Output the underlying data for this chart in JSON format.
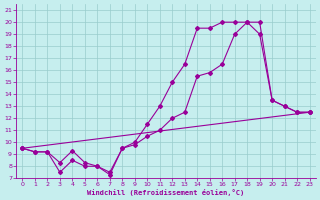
{
  "xlabel": "Windchill (Refroidissement éolien,°C)",
  "bg_color": "#c6eeee",
  "grid_color": "#99cccc",
  "line_color": "#990099",
  "xlim": [
    -0.5,
    23.5
  ],
  "ylim": [
    7,
    21.5
  ],
  "xticks": [
    0,
    1,
    2,
    3,
    4,
    5,
    6,
    7,
    8,
    9,
    10,
    11,
    12,
    13,
    14,
    15,
    16,
    17,
    18,
    19,
    20,
    21,
    22,
    23
  ],
  "yticks": [
    7,
    8,
    9,
    10,
    11,
    12,
    13,
    14,
    15,
    16,
    17,
    18,
    19,
    20,
    21
  ],
  "line1_x": [
    0,
    1,
    2,
    3,
    4,
    5,
    6,
    7,
    8,
    9,
    10,
    11,
    12,
    13,
    14,
    15,
    16,
    17,
    18,
    19,
    20,
    21,
    22,
    23
  ],
  "line1_y": [
    9.5,
    9.2,
    9.2,
    8.3,
    9.3,
    8.3,
    8.0,
    7.3,
    9.5,
    9.8,
    10.5,
    11.0,
    12.0,
    12.5,
    15.5,
    15.8,
    16.5,
    19.0,
    20.0,
    19.0,
    13.5,
    13.0,
    12.5,
    12.5
  ],
  "line2_x": [
    0,
    1,
    2,
    3,
    4,
    5,
    6,
    7,
    8,
    9,
    10,
    11,
    12,
    13,
    14,
    15,
    16,
    17,
    18,
    19,
    20,
    21,
    22,
    23
  ],
  "line2_y": [
    9.5,
    9.2,
    9.2,
    7.5,
    8.5,
    8.0,
    8.0,
    7.5,
    9.5,
    10.0,
    11.5,
    13.0,
    15.0,
    16.5,
    19.5,
    19.5,
    20.0,
    20.0,
    20.0,
    20.0,
    13.5,
    13.0,
    12.5,
    12.5
  ],
  "line3_x": [
    0,
    23
  ],
  "line3_y": [
    9.5,
    12.5
  ]
}
